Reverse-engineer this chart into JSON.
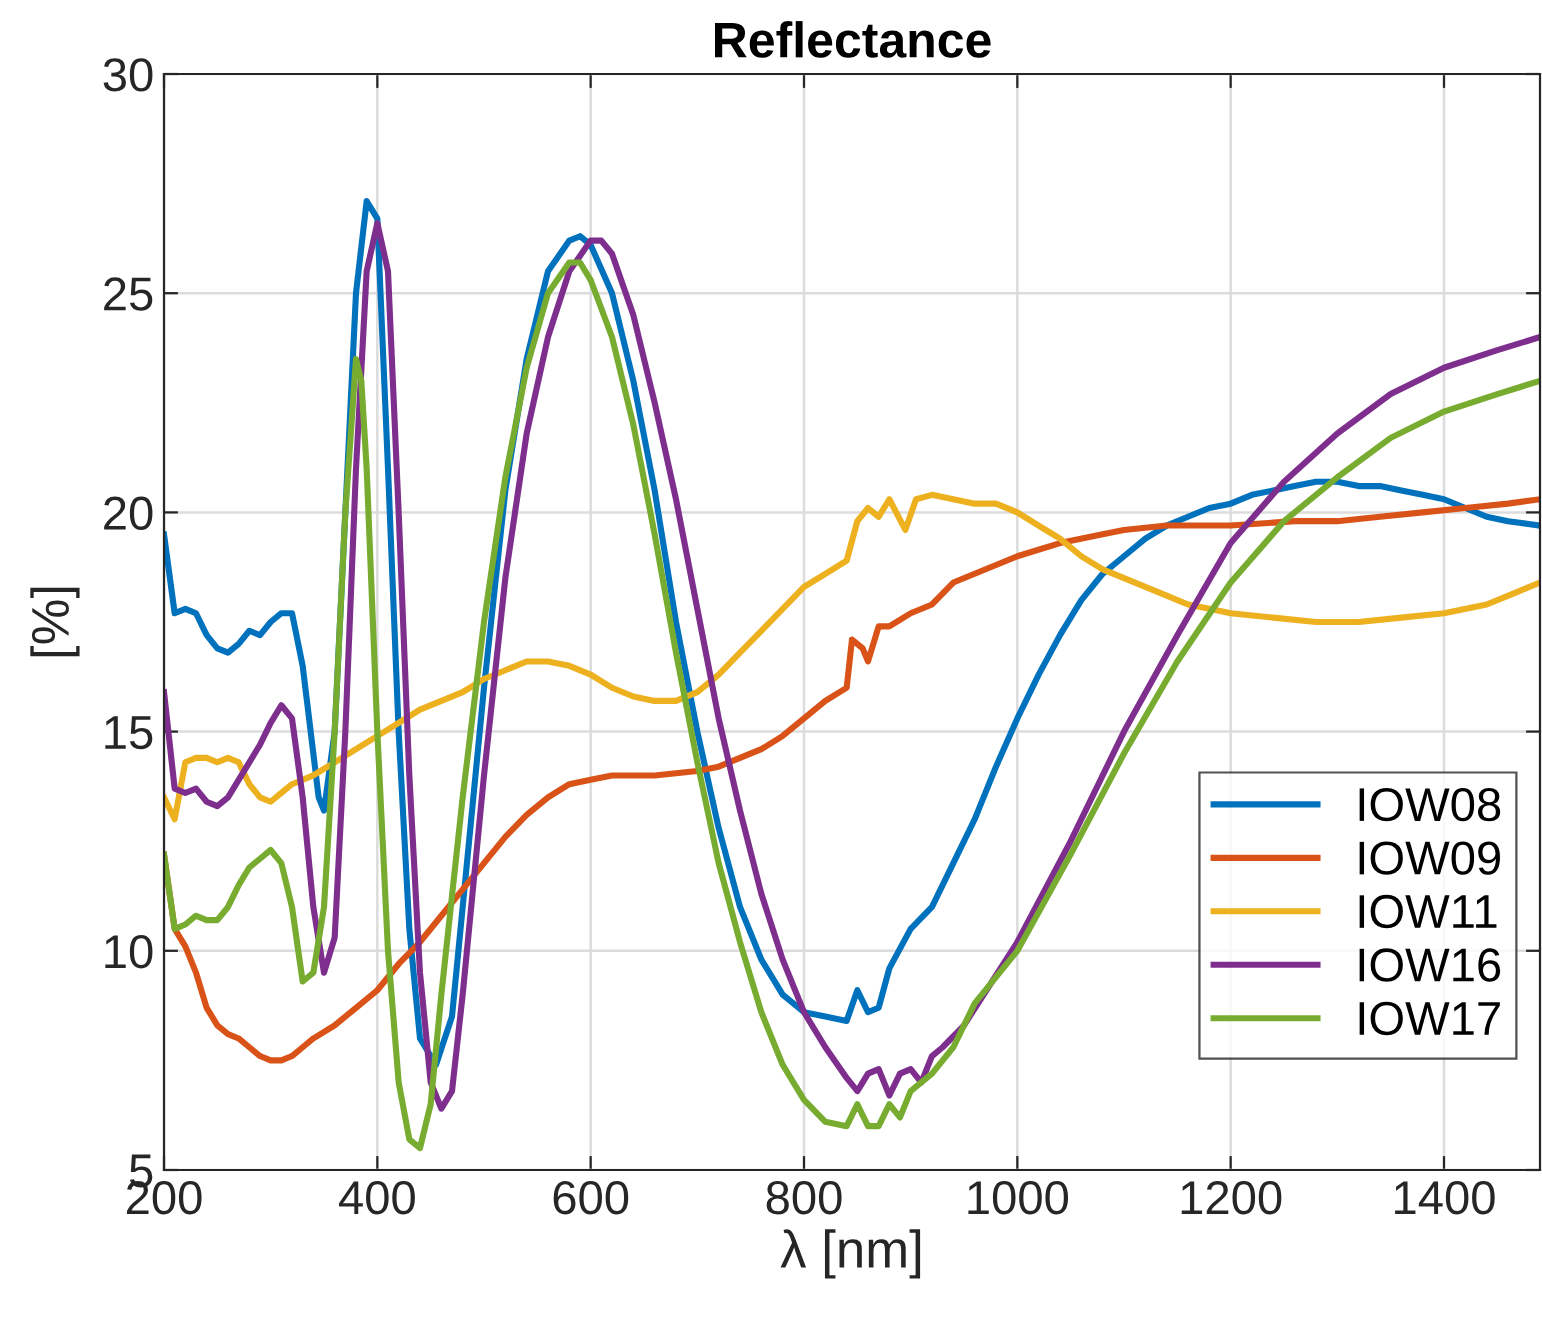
{
  "chart_data": {
    "type": "line",
    "title": "Reflectance",
    "xlabel": "λ [nm]",
    "ylabel": "[%]",
    "xlim": [
      200,
      1490
    ],
    "ylim": [
      5,
      30
    ],
    "xticks": [
      200,
      400,
      600,
      800,
      1000,
      1200,
      1400
    ],
    "yticks": [
      5,
      10,
      15,
      20,
      25,
      30
    ],
    "grid": true,
    "legend": "lower right",
    "line_style": "solid",
    "series": [
      {
        "name": "IOW08",
        "color": "#0072bd",
        "x": [
          200,
          210,
          220,
          230,
          240,
          250,
          260,
          270,
          280,
          290,
          300,
          310,
          320,
          330,
          345,
          350,
          360,
          370,
          380,
          390,
          400,
          410,
          420,
          430,
          440,
          455,
          470,
          480,
          500,
          520,
          540,
          560,
          580,
          590,
          600,
          620,
          640,
          660,
          680,
          700,
          720,
          740,
          760,
          780,
          800,
          820,
          840,
          850,
          860,
          870,
          880,
          900,
          920,
          940,
          960,
          980,
          1000,
          1020,
          1040,
          1060,
          1080,
          1100,
          1120,
          1140,
          1160,
          1180,
          1200,
          1220,
          1240,
          1260,
          1280,
          1300,
          1320,
          1340,
          1360,
          1380,
          1400,
          1420,
          1440,
          1460,
          1490
        ],
        "values": [
          19.5,
          17.7,
          17.8,
          17.7,
          17.2,
          16.9,
          16.8,
          17.0,
          17.3,
          17.2,
          17.5,
          17.7,
          17.7,
          16.5,
          13.5,
          13.2,
          15,
          20,
          25,
          27.1,
          26.7,
          21,
          15,
          10.5,
          8.0,
          7.4,
          8.5,
          11,
          16,
          20.5,
          23.5,
          25.5,
          26.2,
          26.3,
          26.1,
          25,
          23,
          20.5,
          17.5,
          15,
          12.8,
          11,
          9.8,
          9,
          8.6,
          8.5,
          8.4,
          9.1,
          8.6,
          8.7,
          9.6,
          10.5,
          11,
          12,
          13,
          14.2,
          15.3,
          16.3,
          17.2,
          18,
          18.6,
          19.0,
          19.4,
          19.7,
          19.9,
          20.1,
          20.2,
          20.4,
          20.5,
          20.6,
          20.7,
          20.7,
          20.6,
          20.6,
          20.5,
          20.4,
          20.3,
          20.1,
          19.9,
          19.8,
          19.7
        ]
      },
      {
        "name": "IOW09",
        "color": "#d95319",
        "x": [
          200,
          210,
          220,
          230,
          240,
          250,
          260,
          270,
          280,
          290,
          300,
          310,
          320,
          330,
          340,
          360,
          380,
          400,
          420,
          440,
          460,
          480,
          500,
          520,
          540,
          560,
          580,
          600,
          620,
          660,
          700,
          720,
          740,
          760,
          780,
          800,
          820,
          840,
          845,
          855,
          860,
          870,
          880,
          900,
          920,
          940,
          960,
          980,
          1000,
          1040,
          1080,
          1100,
          1140,
          1200,
          1260,
          1300,
          1340,
          1380,
          1420,
          1460,
          1490
        ],
        "values": [
          12.2,
          10.5,
          10.1,
          9.5,
          8.7,
          8.3,
          8.1,
          8.0,
          7.8,
          7.6,
          7.5,
          7.5,
          7.6,
          7.8,
          8.0,
          8.3,
          8.7,
          9.1,
          9.7,
          10.2,
          10.8,
          11.4,
          12.0,
          12.6,
          13.1,
          13.5,
          13.8,
          13.9,
          14.0,
          14.0,
          14.1,
          14.2,
          14.4,
          14.6,
          14.9,
          15.3,
          15.7,
          16.0,
          17.1,
          16.9,
          16.6,
          17.4,
          17.4,
          17.7,
          17.9,
          18.4,
          18.6,
          18.8,
          19.0,
          19.3,
          19.5,
          19.6,
          19.7,
          19.7,
          19.8,
          19.8,
          19.9,
          20.0,
          20.1,
          20.2,
          20.3
        ]
      },
      {
        "name": "IOW11",
        "color": "#edb120",
        "x": [
          200,
          210,
          220,
          230,
          240,
          250,
          260,
          270,
          280,
          290,
          300,
          310,
          320,
          340,
          360,
          380,
          400,
          420,
          440,
          460,
          480,
          500,
          520,
          540,
          560,
          580,
          600,
          620,
          640,
          660,
          680,
          700,
          720,
          740,
          760,
          780,
          800,
          820,
          840,
          850,
          860,
          870,
          880,
          895,
          905,
          920,
          940,
          960,
          980,
          1000,
          1020,
          1040,
          1060,
          1080,
          1100,
          1120,
          1140,
          1160,
          1180,
          1200,
          1240,
          1280,
          1320,
          1360,
          1400,
          1440,
          1470,
          1490
        ],
        "values": [
          13.5,
          13.0,
          14.3,
          14.4,
          14.4,
          14.3,
          14.4,
          14.3,
          13.8,
          13.5,
          13.4,
          13.6,
          13.8,
          14.0,
          14.3,
          14.6,
          14.9,
          15.2,
          15.5,
          15.7,
          15.9,
          16.2,
          16.4,
          16.6,
          16.6,
          16.5,
          16.3,
          16.0,
          15.8,
          15.7,
          15.7,
          15.9,
          16.3,
          16.8,
          17.3,
          17.8,
          18.3,
          18.6,
          18.9,
          19.8,
          20.1,
          19.9,
          20.3,
          19.6,
          20.3,
          20.4,
          20.3,
          20.2,
          20.2,
          20.0,
          19.7,
          19.4,
          19.0,
          18.7,
          18.5,
          18.3,
          18.1,
          17.9,
          17.8,
          17.7,
          17.6,
          17.5,
          17.5,
          17.6,
          17.7,
          17.9,
          18.2,
          18.4
        ]
      },
      {
        "name": "IOW16",
        "color": "#7e2f8e",
        "x": [
          200,
          210,
          220,
          230,
          240,
          250,
          260,
          270,
          280,
          290,
          300,
          310,
          320,
          330,
          340,
          350,
          360,
          370,
          380,
          390,
          400,
          410,
          420,
          430,
          440,
          450,
          460,
          470,
          480,
          500,
          520,
          540,
          560,
          580,
          600,
          610,
          620,
          640,
          660,
          680,
          700,
          720,
          740,
          760,
          780,
          800,
          820,
          840,
          850,
          860,
          870,
          880,
          890,
          900,
          910,
          920,
          930,
          950,
          1000,
          1050,
          1100,
          1150,
          1200,
          1250,
          1300,
          1350,
          1400,
          1450,
          1490
        ],
        "values": [
          15.9,
          13.7,
          13.6,
          13.7,
          13.4,
          13.3,
          13.5,
          13.9,
          14.3,
          14.7,
          15.2,
          15.6,
          15.3,
          13.5,
          11,
          9.5,
          10.3,
          15,
          21,
          25.5,
          26.6,
          25.5,
          20,
          14,
          9.5,
          7.0,
          6.4,
          6.8,
          9,
          14,
          18.5,
          21.8,
          24,
          25.5,
          26.2,
          26.2,
          25.9,
          24.5,
          22.5,
          20.3,
          17.8,
          15.3,
          13.2,
          11.3,
          9.8,
          8.6,
          7.8,
          7.1,
          6.8,
          7.2,
          7.3,
          6.7,
          7.2,
          7.3,
          7.0,
          7.6,
          7.8,
          8.3,
          10.2,
          12.5,
          15,
          17.2,
          19.3,
          20.7,
          21.8,
          22.7,
          23.3,
          23.7,
          24.0
        ]
      },
      {
        "name": "IOW17",
        "color": "#77ac30",
        "x": [
          200,
          210,
          220,
          230,
          240,
          250,
          260,
          270,
          280,
          290,
          300,
          310,
          320,
          330,
          340,
          350,
          360,
          370,
          380,
          385,
          390,
          400,
          410,
          420,
          430,
          440,
          450,
          460,
          480,
          500,
          520,
          540,
          560,
          580,
          590,
          600,
          620,
          640,
          660,
          680,
          700,
          720,
          740,
          760,
          780,
          800,
          820,
          840,
          850,
          860,
          870,
          880,
          890,
          900,
          920,
          940,
          960,
          1000,
          1050,
          1100,
          1150,
          1200,
          1250,
          1300,
          1350,
          1400,
          1450,
          1490
        ],
        "values": [
          12.2,
          10.5,
          10.6,
          10.8,
          10.7,
          10.7,
          11.0,
          11.5,
          11.9,
          12.1,
          12.3,
          12.0,
          11.0,
          9.3,
          9.5,
          11,
          15,
          20,
          23.5,
          23.0,
          21,
          15,
          10,
          7,
          5.7,
          5.5,
          6.5,
          9,
          13.5,
          17.5,
          20.8,
          23.3,
          25,
          25.7,
          25.7,
          25.3,
          24,
          22,
          19.5,
          16.8,
          14.3,
          12.0,
          10.2,
          8.6,
          7.4,
          6.6,
          6.1,
          6.0,
          6.5,
          6.0,
          6.0,
          6.5,
          6.2,
          6.8,
          7.2,
          7.8,
          8.8,
          10.0,
          12.2,
          14.5,
          16.6,
          18.4,
          19.8,
          20.8,
          21.7,
          22.3,
          22.7,
          23.0
        ]
      }
    ]
  }
}
